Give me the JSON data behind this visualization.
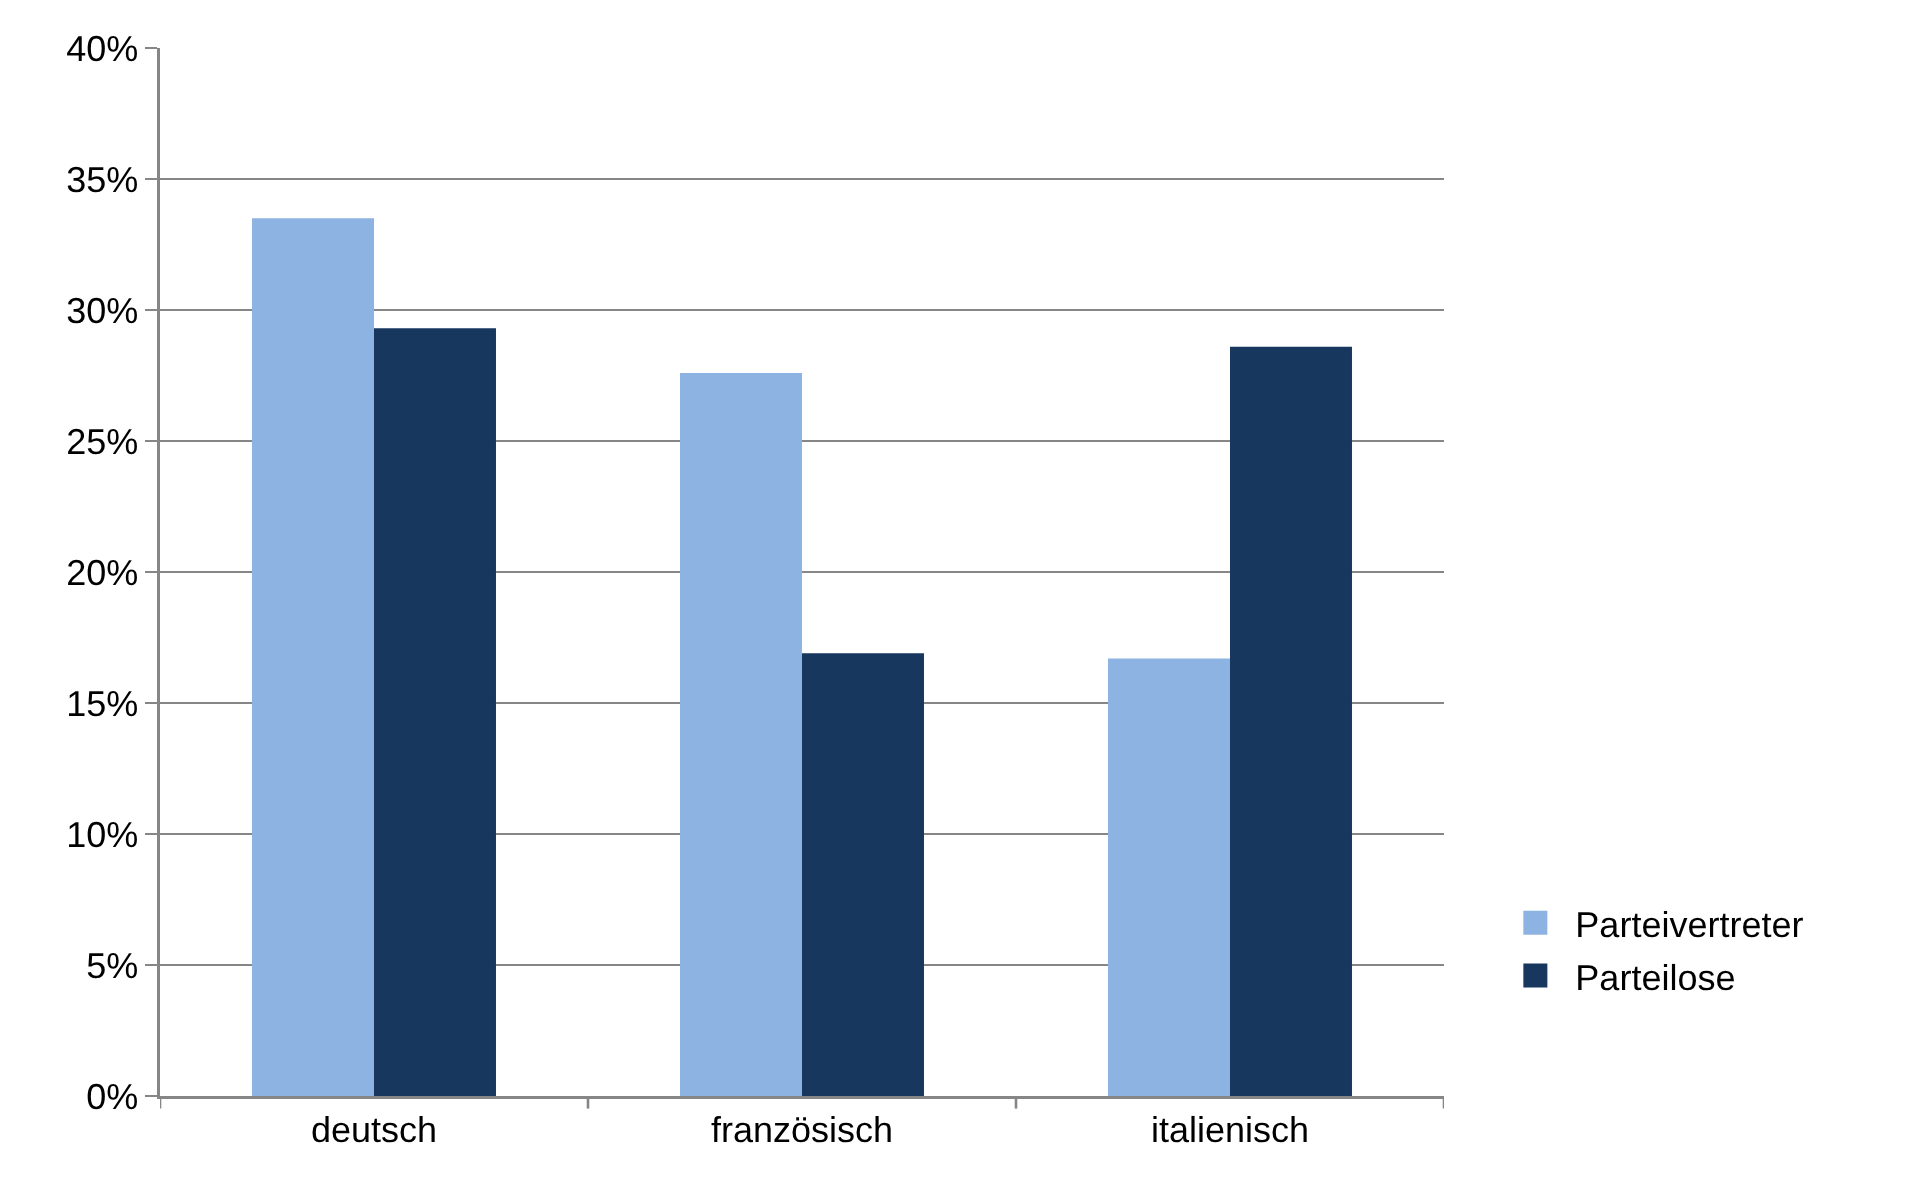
{
  "chart_data": {
    "type": "bar",
    "categories": [
      "deutsch",
      "französisch",
      "italienisch"
    ],
    "series": [
      {
        "name": "Parteivertreter",
        "color": "#8db3e2",
        "values": [
          33.5,
          27.6,
          16.7
        ]
      },
      {
        "name": "Parteilose",
        "color": "#17375e",
        "values": [
          29.3,
          16.9,
          28.6
        ]
      }
    ],
    "ylim": [
      0,
      40
    ],
    "yticks": [
      {
        "value": 0,
        "label": "0%"
      },
      {
        "value": 5,
        "label": "5%"
      },
      {
        "value": 10,
        "label": "10%"
      },
      {
        "value": 15,
        "label": "15%"
      },
      {
        "value": 20,
        "label": "20%"
      },
      {
        "value": 25,
        "label": "25%"
      },
      {
        "value": 30,
        "label": "30%"
      },
      {
        "value": 35,
        "label": "35%"
      },
      {
        "value": 40,
        "label": "40%"
      }
    ],
    "grid": "y",
    "legend": "right"
  }
}
